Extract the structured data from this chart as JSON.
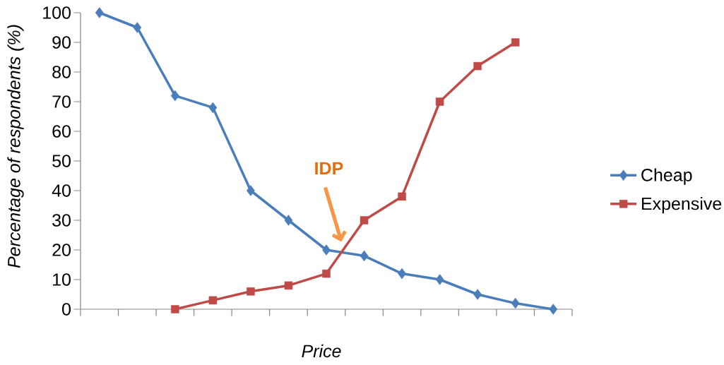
{
  "chart_data": {
    "type": "line",
    "xlabel": "Price",
    "ylabel": "Percentage of respondents (%)",
    "categories": [
      null,
      null,
      null,
      null,
      null,
      null,
      null,
      null,
      null,
      null,
      null,
      null,
      null
    ],
    "series": [
      {
        "name": "Cheap",
        "color": "#4a7ebb",
        "marker": "diamond",
        "values": [
          100,
          95,
          72,
          68,
          40,
          30,
          20,
          18,
          12,
          10,
          5,
          2,
          0
        ]
      },
      {
        "name": "Expensive",
        "color": "#be4b48",
        "marker": "square",
        "values": [
          null,
          null,
          0,
          3,
          6,
          8,
          12,
          30,
          38,
          70,
          82,
          90,
          null
        ]
      }
    ],
    "ylim": [
      0,
      100
    ],
    "yticks": [
      0,
      10,
      20,
      30,
      40,
      50,
      60,
      70,
      80,
      90,
      100
    ],
    "legend": "right",
    "line_style": "solid",
    "annotations": [
      "IDP"
    ]
  }
}
